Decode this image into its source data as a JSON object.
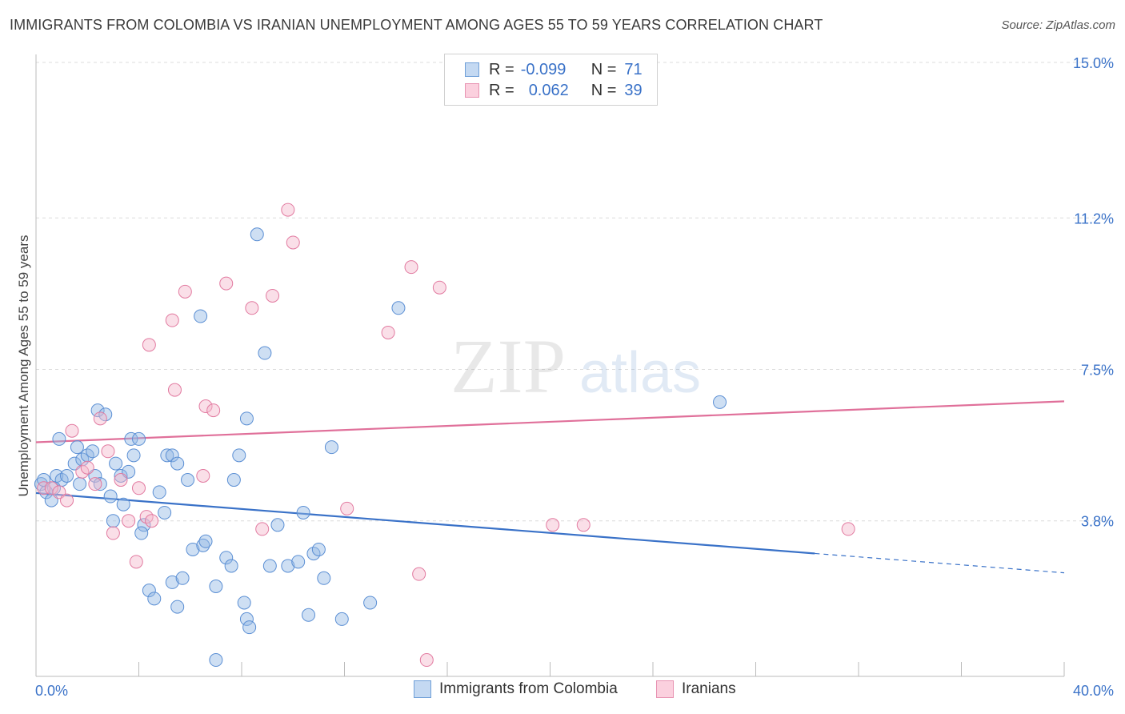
{
  "header": {
    "title": "IMMIGRANTS FROM COLOMBIA VS IRANIAN UNEMPLOYMENT AMONG AGES 55 TO 59 YEARS CORRELATION CHART",
    "source": "Source: ZipAtlas.com"
  },
  "watermark": {
    "zip": "ZIP",
    "atlas": "atlas"
  },
  "legend": {
    "rows": [
      {
        "r_label": "R =",
        "r_value": "-0.099",
        "n_label": "N =",
        "n_value": "71"
      },
      {
        "r_label": "R =",
        "r_value": "0.062",
        "n_label": "N =",
        "n_value": "39"
      }
    ]
  },
  "bottom_legend": [
    "Immigrants from Colombia",
    "Iranians"
  ],
  "chart_data": {
    "type": "scatter",
    "title": "IMMIGRANTS FROM COLOMBIA VS IRANIAN UNEMPLOYMENT AMONG AGES 55 TO 59 YEARS CORRELATION CHART",
    "xlabel": "",
    "ylabel": "Unemployment Among Ages 55 to 59 years",
    "xlim": [
      0,
      40
    ],
    "ylim": [
      0,
      15
    ],
    "x_tick_labels": [
      {
        "value": 0,
        "label": "0.0%"
      },
      {
        "value": 40,
        "label": "40.0%"
      }
    ],
    "y_tick_labels": [
      {
        "value": 3.8,
        "label": "3.8%"
      },
      {
        "value": 7.5,
        "label": "7.5%"
      },
      {
        "value": 11.2,
        "label": "11.2%"
      },
      {
        "value": 15.0,
        "label": "15.0%"
      }
    ],
    "grid": true,
    "series": [
      {
        "name": "Immigrants from Colombia",
        "color": "#92b8e4",
        "stroke": "#5b8fd4",
        "points": [
          [
            0.2,
            4.7
          ],
          [
            0.4,
            4.5
          ],
          [
            0.6,
            4.3
          ],
          [
            0.3,
            4.8
          ],
          [
            0.8,
            4.9
          ],
          [
            1.0,
            4.8
          ],
          [
            0.7,
            4.6
          ],
          [
            1.2,
            4.9
          ],
          [
            1.5,
            5.2
          ],
          [
            1.7,
            4.7
          ],
          [
            0.9,
            5.8
          ],
          [
            1.6,
            5.6
          ],
          [
            1.8,
            5.3
          ],
          [
            2.3,
            4.9
          ],
          [
            2.5,
            4.7
          ],
          [
            2.0,
            5.4
          ],
          [
            2.2,
            5.5
          ],
          [
            2.4,
            6.5
          ],
          [
            2.7,
            6.4
          ],
          [
            3.1,
            5.2
          ],
          [
            3.3,
            4.9
          ],
          [
            3.6,
            5.0
          ],
          [
            3.7,
            5.8
          ],
          [
            3.8,
            5.4
          ],
          [
            4.0,
            5.8
          ],
          [
            2.9,
            4.4
          ],
          [
            3.4,
            4.2
          ],
          [
            3.0,
            3.8
          ],
          [
            4.2,
            3.7
          ],
          [
            4.1,
            3.5
          ],
          [
            4.8,
            4.5
          ],
          [
            5.0,
            4.0
          ],
          [
            5.1,
            5.4
          ],
          [
            5.3,
            5.4
          ],
          [
            5.5,
            5.2
          ],
          [
            5.9,
            4.8
          ],
          [
            6.1,
            3.1
          ],
          [
            6.5,
            3.2
          ],
          [
            6.6,
            3.3
          ],
          [
            6.4,
            8.8
          ],
          [
            7.4,
            2.9
          ],
          [
            7.6,
            2.7
          ],
          [
            7.7,
            4.8
          ],
          [
            7.9,
            5.4
          ],
          [
            8.2,
            6.3
          ],
          [
            8.6,
            10.8
          ],
          [
            8.9,
            7.9
          ],
          [
            8.1,
            1.8
          ],
          [
            8.2,
            1.4
          ],
          [
            8.3,
            1.2
          ],
          [
            9.4,
            3.7
          ],
          [
            9.8,
            2.7
          ],
          [
            10.2,
            2.8
          ],
          [
            10.4,
            4.0
          ],
          [
            10.6,
            1.5
          ],
          [
            10.8,
            3.0
          ],
          [
            11.0,
            3.1
          ],
          [
            11.2,
            2.4
          ],
          [
            11.5,
            5.6
          ],
          [
            11.9,
            1.4
          ],
          [
            9.1,
            2.7
          ],
          [
            7.0,
            0.4
          ],
          [
            13.0,
            1.8
          ],
          [
            14.1,
            9.0
          ],
          [
            4.4,
            2.1
          ],
          [
            4.6,
            1.9
          ],
          [
            5.3,
            2.3
          ],
          [
            5.7,
            2.4
          ],
          [
            5.5,
            1.7
          ],
          [
            7.0,
            2.2
          ],
          [
            26.6,
            6.7
          ]
        ]
      },
      {
        "name": "Iranians",
        "color": "#f5b8cc",
        "stroke": "#e27aa0",
        "points": [
          [
            0.3,
            4.6
          ],
          [
            0.6,
            4.6
          ],
          [
            0.9,
            4.5
          ],
          [
            1.2,
            4.3
          ],
          [
            1.4,
            6.0
          ],
          [
            1.8,
            5.0
          ],
          [
            2.0,
            5.1
          ],
          [
            2.3,
            4.7
          ],
          [
            2.5,
            6.3
          ],
          [
            2.8,
            5.5
          ],
          [
            3.0,
            3.5
          ],
          [
            3.3,
            4.8
          ],
          [
            3.6,
            3.8
          ],
          [
            4.0,
            4.6
          ],
          [
            4.3,
            3.9
          ],
          [
            4.5,
            3.8
          ],
          [
            3.9,
            2.8
          ],
          [
            4.4,
            8.1
          ],
          [
            5.3,
            8.7
          ],
          [
            5.4,
            7.0
          ],
          [
            5.8,
            9.4
          ],
          [
            6.5,
            4.9
          ],
          [
            6.6,
            6.6
          ],
          [
            6.9,
            6.5
          ],
          [
            7.4,
            9.6
          ],
          [
            8.4,
            9.0
          ],
          [
            8.8,
            3.6
          ],
          [
            9.2,
            9.3
          ],
          [
            9.8,
            11.4
          ],
          [
            10.0,
            10.6
          ],
          [
            12.1,
            4.1
          ],
          [
            13.7,
            8.4
          ],
          [
            14.6,
            10.0
          ],
          [
            14.9,
            2.5
          ],
          [
            15.2,
            0.4
          ],
          [
            15.7,
            9.5
          ],
          [
            20.1,
            3.7
          ],
          [
            21.3,
            3.7
          ],
          [
            31.6,
            3.6
          ]
        ]
      }
    ],
    "trend_lines": [
      {
        "series": "Immigrants from Colombia",
        "y_at_x0": 4.48,
        "y_at_x40": 2.53,
        "solid_until_x": 30.3,
        "color": "#3a72c8"
      },
      {
        "series": "Iranians",
        "y_at_x0": 5.72,
        "y_at_x40": 6.72,
        "color": "#e0709a"
      }
    ]
  }
}
